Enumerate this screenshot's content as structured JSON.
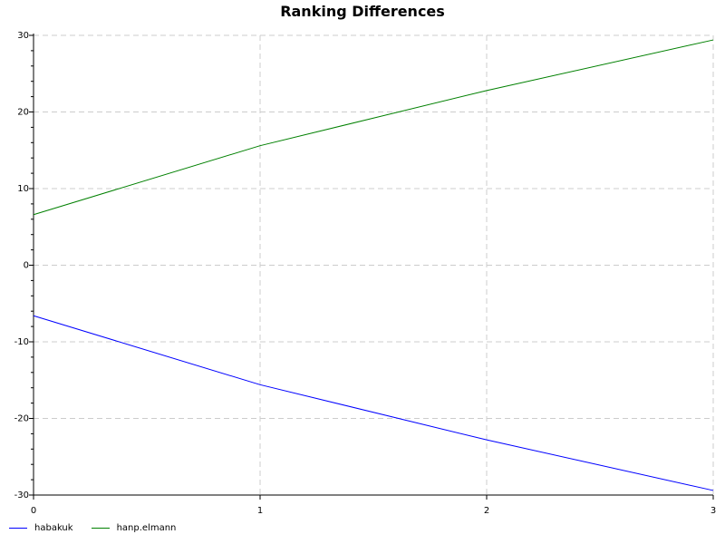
{
  "chart_data": {
    "type": "line",
    "title": "Ranking Differences",
    "xlabel": "",
    "ylabel": "",
    "x": [
      0,
      1,
      2,
      3
    ],
    "x_ticks": [
      "0",
      "1",
      "2",
      "3"
    ],
    "y_ticks": [
      "30",
      "20",
      "10",
      "0",
      "-10",
      "-20",
      "-30"
    ],
    "xlim": [
      0,
      3
    ],
    "ylim": [
      -30,
      30
    ],
    "grid": true,
    "legend_position": "bottom-left",
    "series": [
      {
        "name": "habakuk",
        "color": "#0000ff",
        "values": [
          -6.6,
          -15.6,
          -22.8,
          -29.4
        ]
      },
      {
        "name": "hanp.elmann",
        "color": "#008000",
        "values": [
          6.6,
          15.6,
          22.8,
          29.4
        ]
      }
    ]
  }
}
